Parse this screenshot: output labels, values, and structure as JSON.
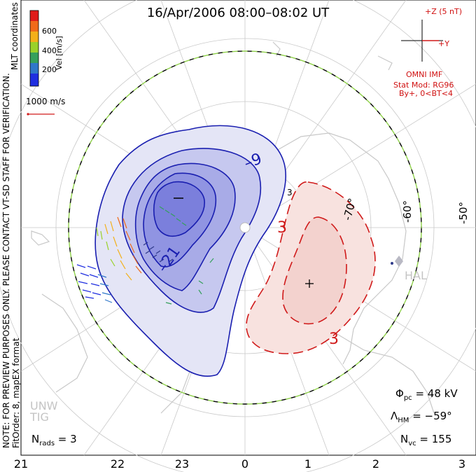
{
  "title": "16/Apr/2006 08:00–08:02 UT",
  "colorbar": {
    "label": "Vel [m/s]",
    "ticks": [
      "600",
      "400",
      "200"
    ],
    "colors": [
      "#e01a1a",
      "#f06a1a",
      "#f3b01a",
      "#9ad12a",
      "#35a05c",
      "#2f77c9",
      "#1f2ee0"
    ]
  },
  "coords_label": "MLT coordinates",
  "reference_vector": "1000 m/s",
  "imf": {
    "scale_label": "+Z (5 nT)",
    "y_label": "+Y",
    "source": "OMNI IMF",
    "stat_mod": "Stat Mod: RG96",
    "bt_range": "By+, 0<BT<4"
  },
  "contour_labels": {
    "neg": [
      "–9",
      "–21"
    ],
    "pos": [
      "3",
      "3",
      "3"
    ]
  },
  "lat_labels": [
    "-70°",
    "-60°",
    "-50°"
  ],
  "station": "HAL",
  "station_faint": [
    "UNW",
    "TIG"
  ],
  "note": "NOTE: FOR PREVIEW PURPOSES ONLY. PLEASE CONTACT VT-SD STAFF FOR VERIFICATION.",
  "fit_order": "FitOrder: 8, mapEX format",
  "stats": {
    "phi_pc_sym": "Φ",
    "phi_pc_sub": "pc",
    "phi_pc_val": " = 48 kV",
    "lambda_sym": "Λ",
    "lambda_sub": "HM",
    "lambda_val": " = −59°",
    "nvc_sym": "N",
    "nvc_sub": "vc",
    "nvc_val": " = 155",
    "nrads_sym": "N",
    "nrads_sub": "rads",
    "nrads_val": " = 3"
  },
  "mlt_ticks": [
    "21",
    "22",
    "23",
    "0",
    "1",
    "2",
    "3"
  ],
  "colors": {
    "neg_fill": "#7b7fdc",
    "neg_line": "#1a1fb0",
    "pos_fill": "#f4c9c4",
    "pos_line": "#d01a1a",
    "hmb": "#8fd14a",
    "coast": "#c8c8c8"
  }
}
